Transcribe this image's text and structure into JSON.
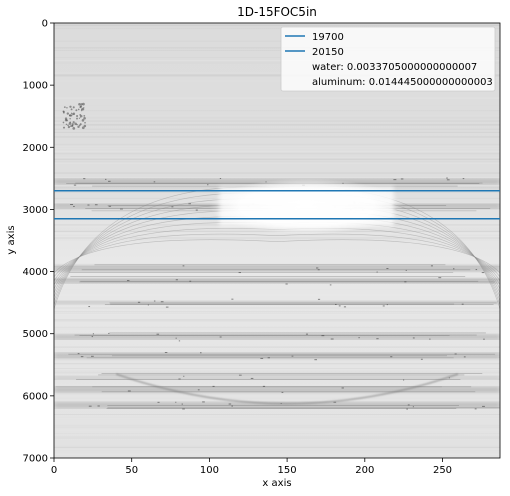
{
  "chart_data": {
    "type": "heatmap",
    "title": "1D-15FOC5in",
    "xlabel": "x axis",
    "ylabel": "y axis",
    "xlim": [
      0,
      287
    ],
    "ylim": [
      7000,
      0
    ],
    "y_inverted": true,
    "colormap": "gray",
    "xticks": [
      0,
      50,
      100,
      150,
      200,
      250
    ],
    "yticks": [
      0,
      1000,
      2000,
      3000,
      4000,
      5000,
      6000,
      7000
    ],
    "hlines": [
      {
        "name": "19700",
        "y": 2700,
        "color": "#1f77b4"
      },
      {
        "name": "20150",
        "y": 3150,
        "color": "#1f77b4"
      }
    ],
    "legend": {
      "placement": "top-right",
      "entries": [
        {
          "label": "19700",
          "line": true,
          "color": "#1f77b4"
        },
        {
          "label": "20150",
          "line": true,
          "color": "#1f77b4"
        },
        {
          "label": "water: 0.0033705000000000007",
          "line": false
        },
        {
          "label": "aluminum: 0.014445000000000003",
          "line": false
        }
      ]
    },
    "bright_region": {
      "x": [
        100,
        225
      ],
      "y": [
        2500,
        3400
      ]
    },
    "dark_bands_y": [
      2550,
      2950,
      3950,
      4150,
      4500,
      5050,
      5350,
      5700,
      5900,
      6150
    ],
    "arc": {
      "x": [
        0,
        287
      ],
      "peak_y": 2650,
      "base_y": 4600
    }
  }
}
